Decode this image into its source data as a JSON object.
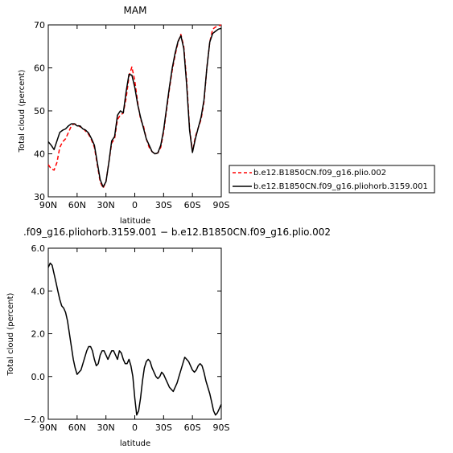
{
  "chart_data": [
    {
      "type": "line",
      "title": "MAM",
      "xlabel": "latitude",
      "ylabel": "Total cloud (percent)",
      "xlim": [
        90,
        -90
      ],
      "ylim": [
        30,
        70
      ],
      "xticks": [
        90,
        60,
        30,
        0,
        -30,
        -60,
        -90
      ],
      "xtick_labels": [
        "90N",
        "60N",
        "30N",
        "0",
        "30S",
        "60S",
        "90S"
      ],
      "yticks": [
        30,
        40,
        50,
        60,
        70
      ],
      "ytick_labels": [
        "30",
        "40",
        "50",
        "60",
        "70"
      ],
      "legend_placement": "right",
      "series": [
        {
          "name": "b.e12.B1850CN.f09_g16.plio.002",
          "color": "#ff0000",
          "dash": "dashed",
          "x": [
            90,
            87,
            84,
            81,
            78,
            75,
            72,
            69,
            66,
            63,
            60,
            57,
            54,
            51,
            48,
            45,
            42,
            39,
            36,
            33,
            30,
            27,
            24,
            21,
            18,
            15,
            12,
            9,
            6,
            3,
            0,
            -3,
            -6,
            -9,
            -12,
            -15,
            -18,
            -21,
            -24,
            -27,
            -30,
            -33,
            -36,
            -39,
            -42,
            -45,
            -48,
            -51,
            -54,
            -57,
            -60,
            -63,
            -66,
            -69,
            -72,
            -75,
            -78,
            -81,
            -84,
            -87,
            -90
          ],
          "y": [
            37.5,
            36.5,
            36.2,
            38.0,
            41.5,
            42.8,
            43.5,
            45.0,
            46.5,
            47.0,
            46.8,
            46.3,
            46.0,
            45.2,
            44.5,
            43.2,
            41.5,
            37.5,
            33.5,
            32.0,
            33.5,
            38.0,
            42.5,
            43.5,
            48.0,
            49.0,
            49.5,
            53.0,
            58.0,
            60.2,
            57.0,
            52.0,
            48.0,
            46.5,
            43.5,
            41.5,
            40.5,
            40.0,
            40.2,
            41.5,
            45.0,
            50.0,
            55.0,
            59.5,
            63.0,
            66.0,
            67.8,
            65.0,
            57.0,
            46.0,
            40.5,
            44.0,
            46.0,
            48.0,
            52.0,
            60.0,
            66.0,
            69.0,
            69.5,
            69.8,
            70.0
          ]
        },
        {
          "name": "b.e12.B1850CN.f09_g16.pliohorb.3159.001",
          "color": "#000000",
          "dash": "solid",
          "x": [
            90,
            87,
            84,
            81,
            78,
            75,
            72,
            69,
            66,
            63,
            60,
            57,
            54,
            51,
            48,
            45,
            42,
            39,
            36,
            33,
            30,
            27,
            24,
            21,
            18,
            15,
            12,
            9,
            6,
            3,
            0,
            -3,
            -6,
            -9,
            -12,
            -15,
            -18,
            -21,
            -24,
            -27,
            -30,
            -33,
            -36,
            -39,
            -42,
            -45,
            -48,
            -51,
            -54,
            -57,
            -60,
            -63,
            -66,
            -69,
            -72,
            -75,
            -78,
            -81,
            -84,
            -87,
            -90
          ],
          "y": [
            42.8,
            42.0,
            41.0,
            43.0,
            45.0,
            45.5,
            45.8,
            46.5,
            47.0,
            47.0,
            46.5,
            46.5,
            45.8,
            45.5,
            44.8,
            43.5,
            42.0,
            38.0,
            34.0,
            32.3,
            33.5,
            38.0,
            43.0,
            44.0,
            49.0,
            50.0,
            49.5,
            54.5,
            58.5,
            58.3,
            55.5,
            51.5,
            48.5,
            46.0,
            43.5,
            42.0,
            40.5,
            40.0,
            40.2,
            42.0,
            45.5,
            50.5,
            55.5,
            60.0,
            63.5,
            66.2,
            67.5,
            64.5,
            56.0,
            45.5,
            40.3,
            43.5,
            46.0,
            48.5,
            52.5,
            60.0,
            66.0,
            68.0,
            68.5,
            69.0,
            69.2
          ]
        }
      ]
    },
    {
      "type": "line",
      "title": ".f09_g16.pliohorb.3159.001 − b.e12.B1850CN.f09_g16.plio.002",
      "xlabel": "latitude",
      "ylabel": "Total cloud (percent)",
      "xlim": [
        90,
        -90
      ],
      "ylim": [
        -2.0,
        6.0
      ],
      "xticks": [
        90,
        60,
        30,
        0,
        -30,
        -60,
        -90
      ],
      "xtick_labels": [
        "90N",
        "60N",
        "30N",
        "0",
        "30S",
        "60S",
        "90S"
      ],
      "yticks": [
        -2.0,
        0.0,
        2.0,
        4.0,
        6.0
      ],
      "ytick_labels": [
        "−2.0",
        "0.0",
        "2.0",
        "4.0",
        "6.0"
      ],
      "series": [
        {
          "color": "#000000",
          "dash": "solid",
          "x": [
            90,
            88,
            86,
            84,
            82,
            80,
            78,
            76,
            74,
            72,
            70,
            68,
            66,
            64,
            62,
            60,
            58,
            56,
            54,
            52,
            50,
            48,
            46,
            44,
            42,
            40,
            38,
            36,
            34,
            32,
            30,
            28,
            26,
            24,
            22,
            20,
            18,
            16,
            14,
            12,
            10,
            8,
            6,
            4,
            2,
            0,
            -2,
            -4,
            -6,
            -8,
            -10,
            -12,
            -14,
            -16,
            -18,
            -20,
            -22,
            -24,
            -26,
            -28,
            -30,
            -32,
            -34,
            -36,
            -38,
            -40,
            -42,
            -44,
            -46,
            -48,
            -50,
            -52,
            -54,
            -56,
            -58,
            -60,
            -62,
            -64,
            -66,
            -68,
            -70,
            -72,
            -74,
            -76,
            -78,
            -80,
            -82,
            -84,
            -86,
            -88,
            -90
          ],
          "y": [
            5.1,
            5.3,
            5.2,
            4.8,
            4.4,
            4.0,
            3.6,
            3.3,
            3.2,
            3.0,
            2.6,
            2.0,
            1.4,
            0.8,
            0.4,
            0.1,
            0.2,
            0.3,
            0.6,
            0.9,
            1.2,
            1.4,
            1.4,
            1.2,
            0.8,
            0.5,
            0.6,
            1.0,
            1.2,
            1.2,
            1.0,
            0.8,
            1.0,
            1.2,
            1.2,
            1.0,
            0.8,
            1.2,
            1.1,
            0.8,
            0.6,
            0.6,
            0.8,
            0.5,
            0.0,
            -1.0,
            -1.8,
            -1.6,
            -1.0,
            -0.2,
            0.4,
            0.7,
            0.8,
            0.7,
            0.4,
            0.2,
            0.0,
            -0.1,
            0.0,
            0.2,
            0.1,
            -0.1,
            -0.3,
            -0.5,
            -0.6,
            -0.7,
            -0.5,
            -0.3,
            0.0,
            0.3,
            0.6,
            0.9,
            0.8,
            0.7,
            0.5,
            0.3,
            0.2,
            0.3,
            0.5,
            0.6,
            0.5,
            0.2,
            -0.2,
            -0.5,
            -0.8,
            -1.2,
            -1.6,
            -1.8,
            -1.7,
            -1.5,
            -1.3
          ]
        }
      ]
    }
  ]
}
